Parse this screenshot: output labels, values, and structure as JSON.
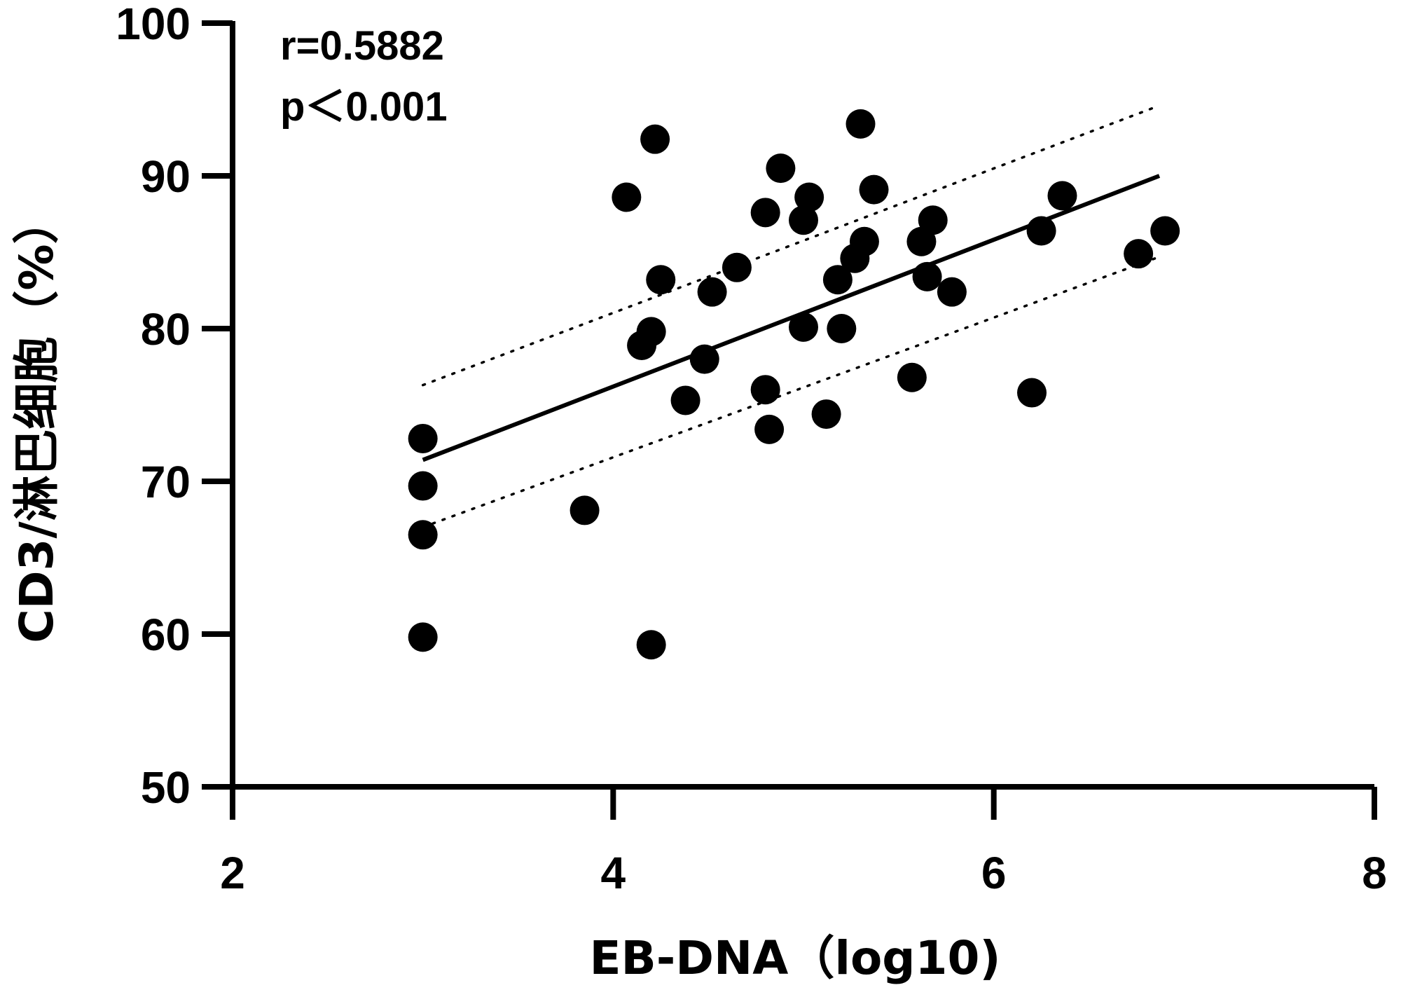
{
  "chart_data": {
    "type": "scatter",
    "xlabel": "EB-DNA（log10)",
    "ylabel": "CD3/淋巴细胞（%）",
    "xlim": [
      2,
      8
    ],
    "ylim": [
      50,
      100
    ],
    "xticks": [
      2,
      4,
      6,
      8
    ],
    "yticks": [
      50,
      60,
      70,
      80,
      90,
      100
    ],
    "annotations": [
      "r=0.5882",
      "p＜0.001"
    ],
    "points": [
      {
        "x": 3.0,
        "y": 72.8
      },
      {
        "x": 3.0,
        "y": 69.7
      },
      {
        "x": 3.0,
        "y": 66.5
      },
      {
        "x": 3.0,
        "y": 59.8
      },
      {
        "x": 3.85,
        "y": 68.1
      },
      {
        "x": 4.07,
        "y": 88.6
      },
      {
        "x": 4.15,
        "y": 78.9
      },
      {
        "x": 4.2,
        "y": 79.8
      },
      {
        "x": 4.2,
        "y": 59.3
      },
      {
        "x": 4.22,
        "y": 92.4
      },
      {
        "x": 4.25,
        "y": 83.2
      },
      {
        "x": 4.38,
        "y": 75.3
      },
      {
        "x": 4.48,
        "y": 78.0
      },
      {
        "x": 4.52,
        "y": 82.4
      },
      {
        "x": 4.65,
        "y": 84.0
      },
      {
        "x": 4.8,
        "y": 87.6
      },
      {
        "x": 4.8,
        "y": 76.0
      },
      {
        "x": 4.82,
        "y": 73.4
      },
      {
        "x": 4.88,
        "y": 90.5
      },
      {
        "x": 5.0,
        "y": 87.1
      },
      {
        "x": 5.03,
        "y": 88.6
      },
      {
        "x": 5.0,
        "y": 80.1
      },
      {
        "x": 5.12,
        "y": 74.4
      },
      {
        "x": 5.18,
        "y": 83.2
      },
      {
        "x": 5.2,
        "y": 80.0
      },
      {
        "x": 5.27,
        "y": 84.6
      },
      {
        "x": 5.3,
        "y": 93.4
      },
      {
        "x": 5.32,
        "y": 85.7
      },
      {
        "x": 5.37,
        "y": 89.1
      },
      {
        "x": 5.57,
        "y": 76.8
      },
      {
        "x": 5.62,
        "y": 85.7
      },
      {
        "x": 5.65,
        "y": 83.4
      },
      {
        "x": 5.68,
        "y": 87.1
      },
      {
        "x": 5.78,
        "y": 82.4
      },
      {
        "x": 6.2,
        "y": 75.8
      },
      {
        "x": 6.25,
        "y": 86.4
      },
      {
        "x": 6.36,
        "y": 88.7
      },
      {
        "x": 6.76,
        "y": 84.9
      },
      {
        "x": 6.9,
        "y": 86.4
      }
    ],
    "fit_line": {
      "x": [
        3.0,
        6.87
      ],
      "y": [
        71.4,
        90.0
      ]
    },
    "ci_upper": {
      "x": [
        3.0,
        6.87
      ],
      "y": [
        76.3,
        94.6
      ]
    },
    "ci_lower": {
      "x": [
        3.0,
        6.87
      ],
      "y": [
        67.0,
        84.7
      ]
    }
  }
}
